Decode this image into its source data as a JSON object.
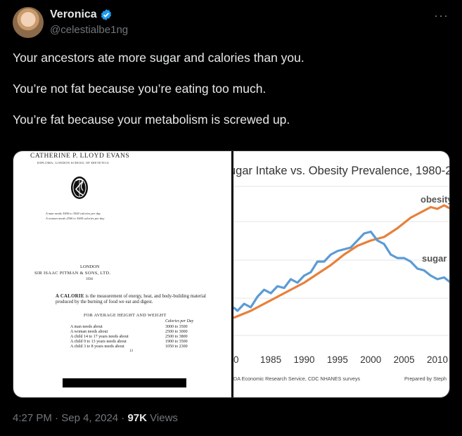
{
  "user": {
    "name": "Veronica",
    "handle": "@celestialbe1ng"
  },
  "tweet": {
    "lines": [
      "Your ancestors ate more sugar and calories than you.",
      "You’re not fat because you’re eating too much.",
      "You’re fat because your metabolism is screwed up."
    ]
  },
  "document": {
    "author": "CATHERINE P. LLOYD EVANS",
    "diploma": "DIPLOMA, LONDON SCHOOL OF DIETETICS",
    "note_man": "A man needs 3000 to 3500 calories per day",
    "note_woman": "A woman needs 2500 to 3000 calories per day",
    "city": "LONDON",
    "publisher": "SIR ISAAC PITMAN & SONS, LTD.",
    "year": "1936",
    "calorie_lead": "A CALORIE",
    "calorie_def": " is the measurement of energy, heat, and body-building material produced by the burning of food we eat and digest.",
    "table_title": "FOR AVERAGE HEIGHT AND WEIGHT",
    "table_col_header": "Calories per Day",
    "table_rows": [
      {
        "label": "A man needs about",
        "value": "3000 to 3500"
      },
      {
        "label": "A woman needs about",
        "value": "2500 to 3000"
      },
      {
        "label": "A child 14 to 17 years needs about",
        "value": "2500 to 3800"
      },
      {
        "label": "A child 9 to 13 years needs about",
        "value": "1900 to 3500"
      },
      {
        "label": "A child 3 to 8 years needs about",
        "value": "1050 to 2300"
      }
    ],
    "page_number": "13"
  },
  "chart_data": {
    "type": "line",
    "title": "ugar Intake vs. Obesity Prevalence, 1980-2",
    "x_ticks": [
      "0",
      "1985",
      "1990",
      "1995",
      "2000",
      "2005",
      "2010"
    ],
    "xlim": [
      1979.4,
      2012
    ],
    "series": [
      {
        "name": "obesity",
        "color": "#e8803a",
        "x": [
          1979.4,
          1982,
          1984,
          1986,
          1988,
          1990,
          1992,
          1994,
          1996,
          1998,
          2000,
          2002,
          2004,
          2006,
          2008,
          2009,
          2010,
          2011,
          2012
        ],
        "y": [
          15,
          17,
          19,
          21,
          23,
          25,
          27.5,
          30,
          33,
          35.5,
          37,
          38,
          40.5,
          43.5,
          45.5,
          46.5,
          46,
          47,
          46
        ]
      },
      {
        "name": "sugar",
        "color": "#5b9bd5",
        "x": [
          1979.4,
          1980,
          1981,
          1982,
          1983,
          1984,
          1985,
          1986,
          1987,
          1988,
          1989,
          1990,
          1991,
          1992,
          1993,
          1994,
          1995,
          1996,
          1997,
          1998,
          1999,
          2000,
          2001,
          2002,
          2003,
          2004,
          2005,
          2006,
          2007,
          2008,
          2009,
          2010,
          2011,
          2012
        ],
        "y": [
          18,
          17,
          19,
          18,
          21,
          23,
          22,
          24,
          23.5,
          26,
          25,
          27,
          28,
          31,
          31,
          33,
          34,
          34.5,
          35,
          37,
          39,
          39.5,
          37,
          36,
          33,
          32,
          32,
          31,
          29,
          28.5,
          27,
          26,
          26.5,
          25
        ]
      }
    ],
    "source": "DA Economic Research Service, CDC NHANES surveys",
    "credit": "Prepared by Steph"
  },
  "footer": {
    "time": "4:27 PM",
    "date": "Sep 4, 2024",
    "views_count": "97K",
    "views_label": "Views"
  },
  "colors": {
    "verified": "#1d9bf0",
    "secondary_text": "#71767b"
  }
}
